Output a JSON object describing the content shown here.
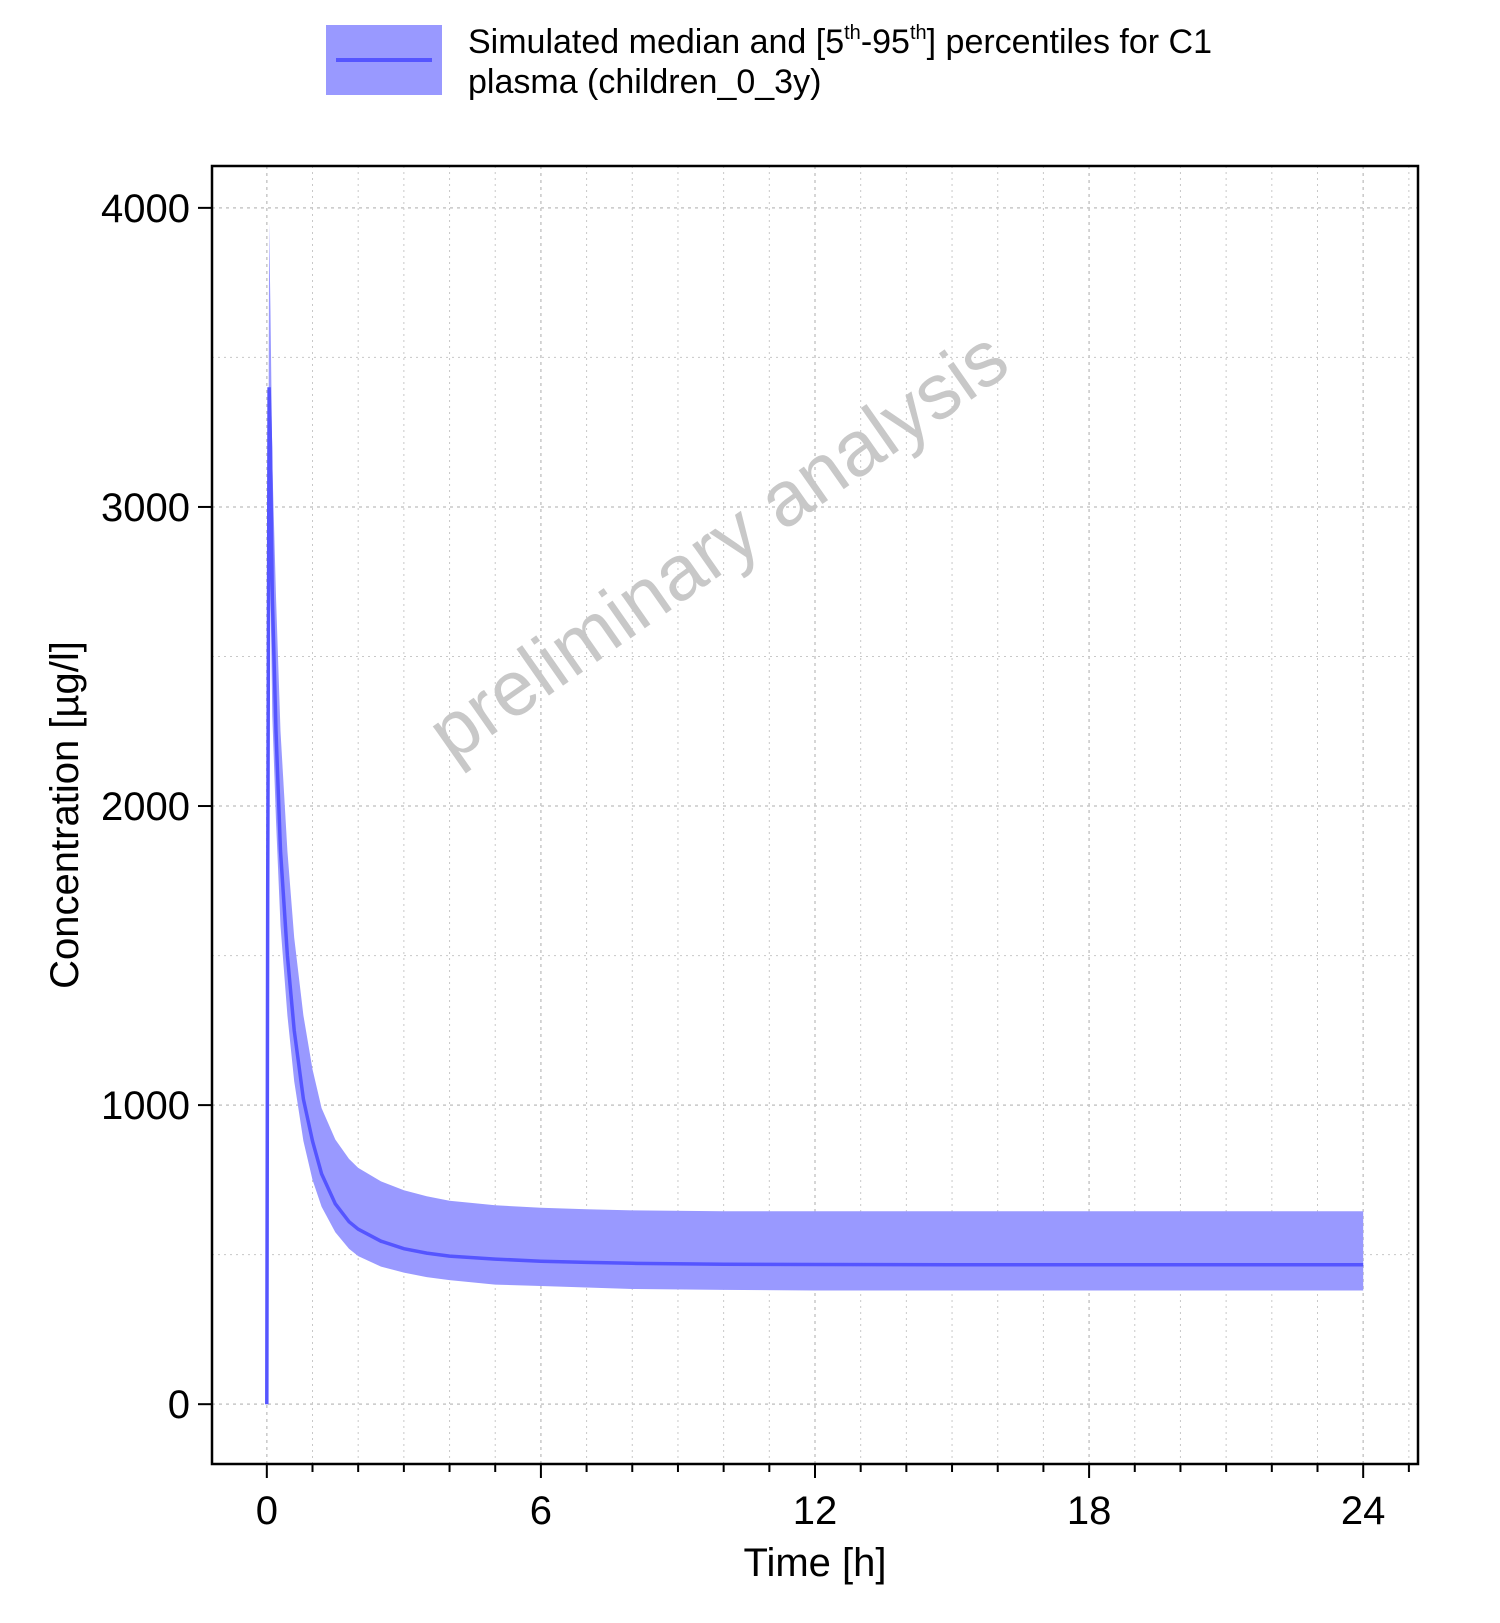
{
  "legend": {
    "part1": "Simulated median and [5",
    "sup1": "th",
    "part2": "-95",
    "sup2": "th",
    "part3": "] percentiles for C1",
    "line2": "plasma (children_0_3y)"
  },
  "watermark": "preliminary analysis",
  "colors": {
    "series": "#5555FF",
    "band": "#9999FF",
    "watermark": "#C8C8C8",
    "grid": "#C8C8C8"
  },
  "chart_data": {
    "type": "area",
    "xlabel": "Time [h]",
    "ylabel": "Concentration [µg/l]",
    "xlim": [
      -1.2,
      25.2
    ],
    "ylim": [
      -200,
      4140
    ],
    "xticks": [
      0,
      6,
      12,
      18,
      24
    ],
    "yticks": [
      0,
      1000,
      2000,
      3000,
      4000
    ],
    "grid": true,
    "legend_position": "top",
    "series": [
      {
        "name": "Simulated median and [5th-95th] percentiles for C1 plasma (children_0_3y)",
        "x": [
          0,
          0.02,
          0.05,
          0.08,
          0.12,
          0.2,
          0.3,
          0.45,
          0.6,
          0.8,
          1.0,
          1.2,
          1.5,
          1.8,
          2.0,
          2.5,
          3.0,
          3.5,
          4.0,
          5.0,
          6.0,
          7.0,
          8.0,
          10.0,
          12.0,
          15.0,
          18.0,
          21.0,
          24.0
        ],
        "median": [
          0,
          1700,
          3400,
          3200,
          2700,
          2250,
          1850,
          1500,
          1250,
          1020,
          880,
          770,
          670,
          610,
          585,
          545,
          520,
          505,
          495,
          485,
          478,
          474,
          471,
          468,
          467,
          466,
          466,
          466,
          466
        ],
        "p5": [
          0,
          1500,
          2900,
          2700,
          2300,
          1950,
          1600,
          1300,
          1080,
          880,
          750,
          660,
          575,
          520,
          495,
          460,
          440,
          425,
          415,
          400,
          395,
          390,
          385,
          382,
          380,
          380,
          380,
          380,
          380
        ],
        "p95": [
          0,
          2100,
          3950,
          3650,
          3150,
          2700,
          2250,
          1850,
          1560,
          1300,
          1120,
          990,
          885,
          820,
          790,
          745,
          715,
          695,
          680,
          665,
          657,
          652,
          648,
          645,
          645,
          645,
          645,
          645,
          645
        ]
      }
    ]
  }
}
